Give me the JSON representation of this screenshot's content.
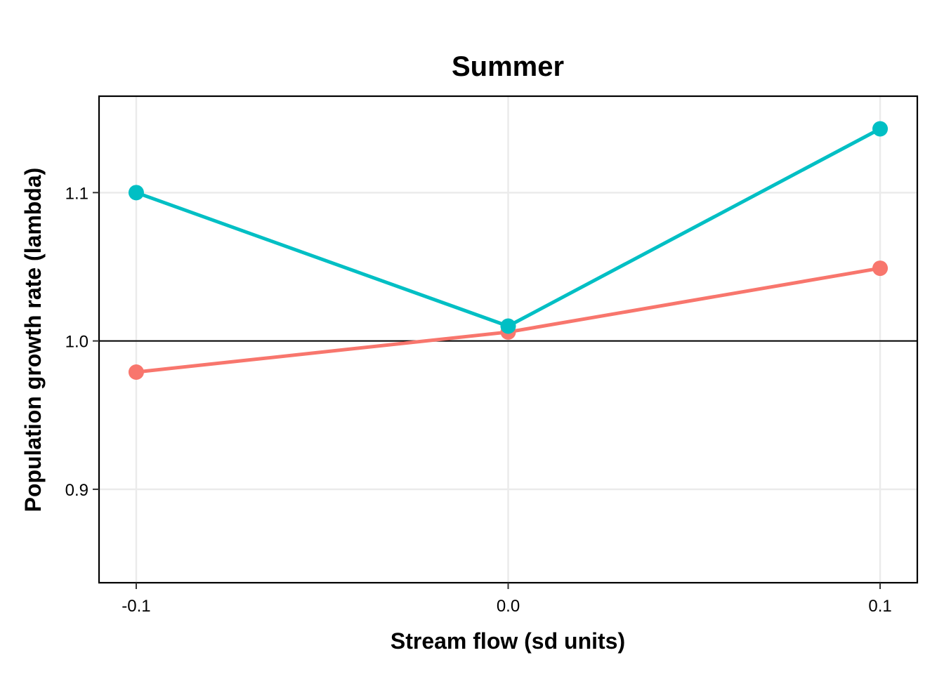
{
  "chart_data": {
    "type": "line",
    "title": "Summer",
    "xlabel": "Stream flow (sd units)",
    "ylabel": "Population growth rate (lambda)",
    "x": [
      -0.1,
      0.0,
      0.1
    ],
    "x_tick_labels": [
      "-0.1",
      "0.0",
      "0.1"
    ],
    "y_ticks": [
      0.9,
      1.0,
      1.1
    ],
    "y_tick_labels": [
      "0.9",
      "1.0",
      "1.1"
    ],
    "xlim": [
      -0.11,
      0.11
    ],
    "ylim": [
      0.837,
      1.165
    ],
    "reference_line_y": 1.0,
    "grid": true,
    "legend": "none",
    "series": [
      {
        "color": "#f8766d",
        "values": [
          0.979,
          1.006,
          1.049
        ]
      },
      {
        "color": "#00bfc4",
        "values": [
          1.1,
          1.01,
          1.143
        ]
      }
    ]
  }
}
